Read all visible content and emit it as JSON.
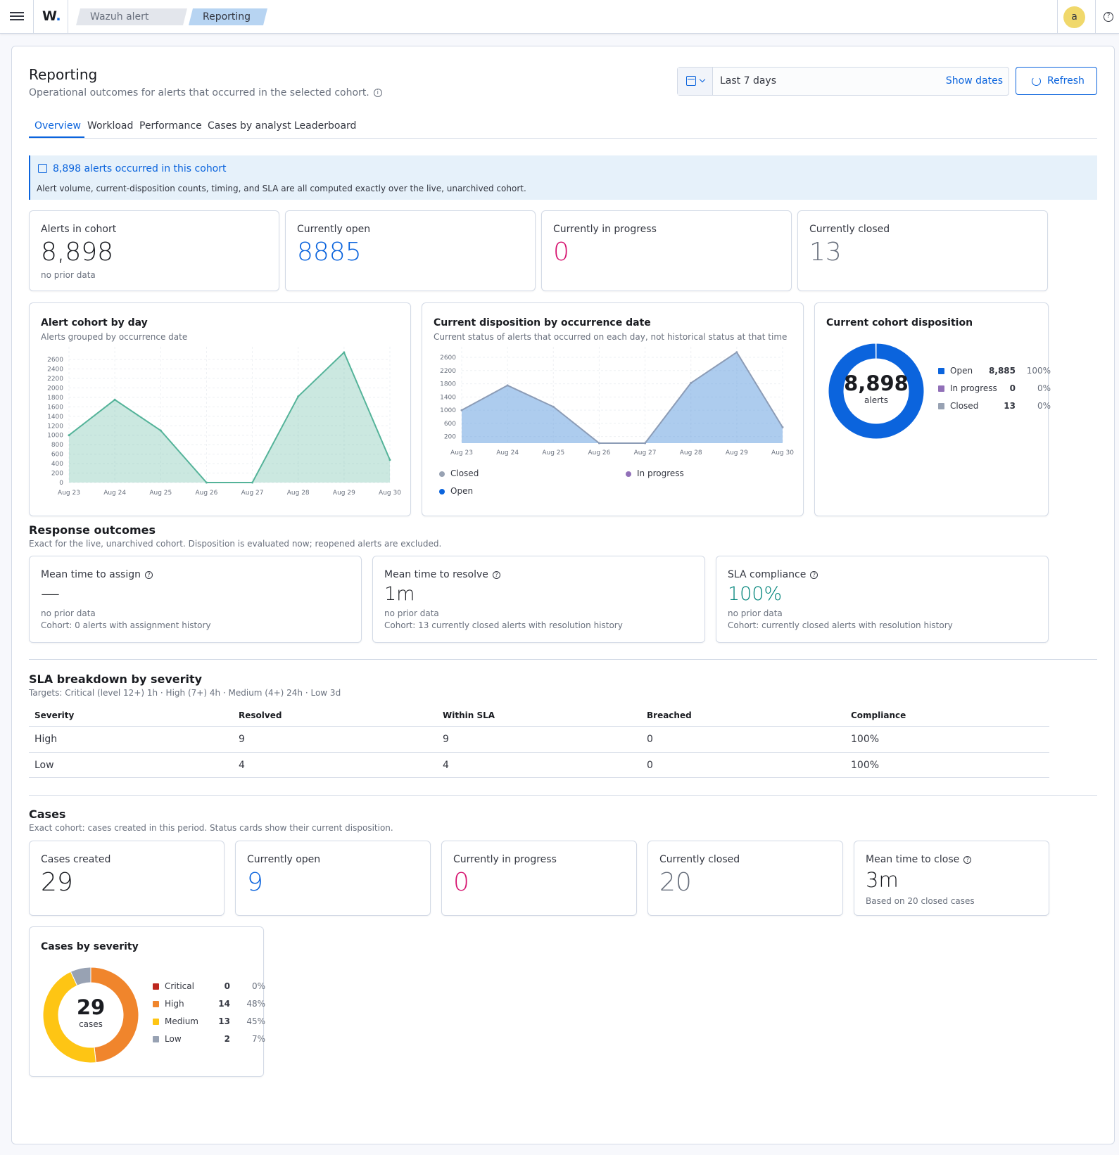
{
  "topbar": {
    "logo": "W",
    "breadcrumbs": [
      "Wazuh alert ma...",
      "Reporting"
    ],
    "avatar_initial": "a"
  },
  "header": {
    "title": "Reporting",
    "subtitle": "Operational outcomes for alerts that occurred in the selected cohort.",
    "date_range": "Last 7 days",
    "show_dates": "Show dates",
    "refresh": "Refresh"
  },
  "tabs": [
    "Overview",
    "Workload",
    "Performance",
    "Cases by analyst",
    "Leaderboard"
  ],
  "callout": {
    "title": "8,898 alerts occurred in this cohort",
    "text": "Alert volume, current-disposition counts, timing, and SLA are all computed exactly over the live, unarchived cohort."
  },
  "alert_stats": [
    {
      "label": "Alerts in cohort",
      "value": "8,898",
      "note": "no prior data"
    },
    {
      "label": "Currently open",
      "value": "8885"
    },
    {
      "label": "Currently in progress",
      "value": "0"
    },
    {
      "label": "Currently closed",
      "value": "13"
    }
  ],
  "cohort_chart": {
    "title": "Alert cohort by day",
    "subtitle": "Alerts grouped by occurrence date"
  },
  "disposition_chart": {
    "title": "Current disposition by occurrence date",
    "subtitle": "Current status of alerts that occurred on each day, not historical status at that time",
    "legend": [
      "Closed",
      "In progress",
      "Open"
    ]
  },
  "cohort_disposition": {
    "title": "Current cohort disposition",
    "center_value": "8,898",
    "center_label": "alerts",
    "rows": [
      {
        "label": "Open",
        "count": "8,885",
        "pct": "100%",
        "color": "#0b64dd"
      },
      {
        "label": "In progress",
        "count": "0",
        "pct": "0%",
        "color": "#9170b8"
      },
      {
        "label": "Closed",
        "count": "13",
        "pct": "0%",
        "color": "#98a2b3"
      }
    ]
  },
  "response": {
    "title": "Response outcomes",
    "subtitle": "Exact for the live, unarchived cohort. Disposition is evaluated now; reopened alerts are excluded.",
    "cards": [
      {
        "label": "Mean time to assign",
        "value": "—",
        "note1": "no prior data",
        "note2": "Cohort: 0 alerts with assignment history"
      },
      {
        "label": "Mean time to resolve",
        "value": "1m",
        "note1": "no prior data",
        "note2": "Cohort: 13 currently closed alerts with resolution history"
      },
      {
        "label": "SLA compliance",
        "value": "100%",
        "note1": "no prior data",
        "note2": "Cohort: currently closed alerts with resolution history"
      }
    ]
  },
  "sla": {
    "title": "SLA breakdown by severity",
    "subtitle": "Targets: Critical (level 12+) 1h · High (7+) 4h · Medium (4+) 24h · Low 3d",
    "columns": [
      "Severity",
      "Resolved",
      "Within SLA",
      "Breached",
      "Compliance"
    ],
    "rows": [
      [
        "High",
        "9",
        "9",
        "0",
        "100%"
      ],
      [
        "Low",
        "4",
        "4",
        "0",
        "100%"
      ]
    ]
  },
  "cases": {
    "title": "Cases",
    "subtitle": "Exact cohort: cases created in this period. Status cards show their current disposition.",
    "stats": [
      {
        "label": "Cases created",
        "value": "29"
      },
      {
        "label": "Currently open",
        "value": "9"
      },
      {
        "label": "Currently in progress",
        "value": "0"
      },
      {
        "label": "Currently closed",
        "value": "20"
      },
      {
        "label": "Mean time to close",
        "value": "3m",
        "note": "Based on 20 closed cases"
      }
    ],
    "severity": {
      "title": "Cases by severity",
      "center_value": "29",
      "center_label": "cases",
      "rows": [
        {
          "label": "Critical",
          "count": "0",
          "pct": "0%",
          "color": "#bd271e"
        },
        {
          "label": "High",
          "count": "14",
          "pct": "48%",
          "color": "#f0852c"
        },
        {
          "label": "Medium",
          "count": "13",
          "pct": "45%",
          "color": "#fec514"
        },
        {
          "label": "Low",
          "count": "2",
          "pct": "7%",
          "color": "#98a2b3"
        }
      ]
    }
  },
  "chart_data": [
    {
      "type": "area",
      "title": "Alert cohort by day",
      "x": [
        "Aug 23",
        "Aug 24",
        "Aug 25",
        "Aug 26",
        "Aug 27",
        "Aug 28",
        "Aug 29",
        "Aug 30"
      ],
      "series": [
        {
          "values": [
            1000,
            1750,
            1100,
            0,
            0,
            1820,
            2750,
            480
          ],
          "color": "#54b399"
        }
      ],
      "yticks": [
        0,
        200,
        400,
        600,
        800,
        1000,
        1200,
        1400,
        1600,
        1800,
        2000,
        2200,
        2400,
        2600
      ],
      "ylim": [
        0,
        2750
      ],
      "grid": true
    },
    {
      "type": "area",
      "title": "Current disposition by occurrence date",
      "x": [
        "Aug 23",
        "Aug 24",
        "Aug 25",
        "Aug 26",
        "Aug 27",
        "Aug 28",
        "Aug 29",
        "Aug 30"
      ],
      "series": [
        {
          "name": "Closed",
          "values": [
            0,
            0,
            3,
            0,
            0,
            3,
            4,
            3
          ],
          "color": "#98a2b3"
        },
        {
          "name": "In progress",
          "values": [
            0,
            0,
            0,
            0,
            0,
            0,
            0,
            0
          ],
          "color": "#9170b8"
        },
        {
          "name": "Open",
          "values": [
            1000,
            1750,
            1100,
            0,
            0,
            1820,
            2750,
            480
          ],
          "color": "#6aa3e0"
        }
      ],
      "yticks": [
        200,
        600,
        1000,
        1400,
        1800,
        2200,
        2600
      ],
      "ylim": [
        0,
        2750
      ],
      "grid": true
    },
    {
      "type": "pie",
      "title": "Current cohort disposition",
      "categories": [
        "Open",
        "In progress",
        "Closed"
      ],
      "values": [
        8885,
        0,
        13
      ]
    },
    {
      "type": "pie",
      "title": "Cases by severity",
      "categories": [
        "Critical",
        "High",
        "Medium",
        "Low"
      ],
      "values": [
        0,
        14,
        13,
        2
      ]
    }
  ]
}
